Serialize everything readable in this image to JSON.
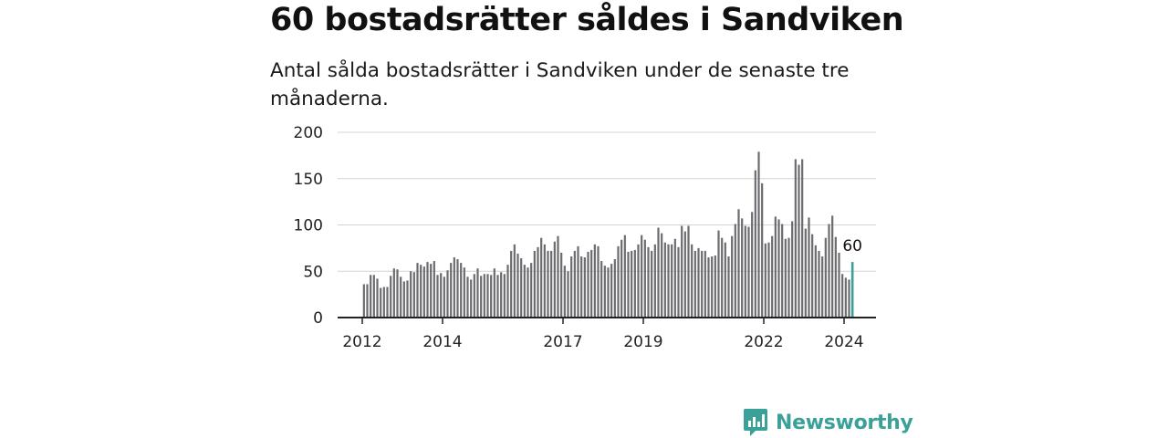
{
  "header": {
    "title": "60 bostadsrätter såldes i Sandviken",
    "subtitle": "Antal sålda bostadsrätter i Sandviken under de senaste tre månaderna."
  },
  "logo": {
    "name": "Newsworthy",
    "icon": "newsworthy-logo-icon",
    "color": "#3aa198"
  },
  "chart_data": {
    "type": "bar",
    "start": "2012-01",
    "end": "2024-04",
    "ylim": [
      0,
      200
    ],
    "yticks": [
      0,
      50,
      100,
      150,
      200
    ],
    "xticks": [
      "2012",
      "2014",
      "2017",
      "2019",
      "2022",
      "2024"
    ],
    "grid": true,
    "bar_color": "#6b6b70",
    "highlight_color": "#3aa198",
    "highlight_label": "60",
    "values": [
      36,
      36,
      46,
      46,
      42,
      32,
      33,
      33,
      45,
      53,
      52,
      44,
      39,
      40,
      50,
      49,
      59,
      57,
      55,
      60,
      58,
      61,
      46,
      48,
      44,
      51,
      59,
      65,
      63,
      59,
      54,
      44,
      41,
      47,
      53,
      45,
      47,
      47,
      46,
      53,
      46,
      49,
      47,
      57,
      72,
      79,
      69,
      64,
      57,
      54,
      59,
      72,
      76,
      86,
      79,
      72,
      72,
      82,
      88,
      70,
      56,
      50,
      66,
      72,
      77,
      66,
      65,
      71,
      73,
      79,
      77,
      61,
      56,
      54,
      58,
      63,
      77,
      84,
      89,
      71,
      72,
      73,
      79,
      89,
      84,
      76,
      72,
      79,
      97,
      91,
      81,
      79,
      79,
      85,
      76,
      99,
      93,
      99,
      79,
      72,
      75,
      72,
      72,
      65,
      66,
      67,
      94,
      86,
      81,
      66,
      88,
      101,
      117,
      107,
      99,
      98,
      114,
      159,
      179,
      145,
      80,
      81,
      88,
      109,
      106,
      101,
      85,
      86,
      104,
      171,
      165,
      171,
      96,
      108,
      90,
      78,
      72,
      66,
      86,
      101,
      110,
      87,
      70,
      47,
      43,
      41,
      60
    ]
  }
}
